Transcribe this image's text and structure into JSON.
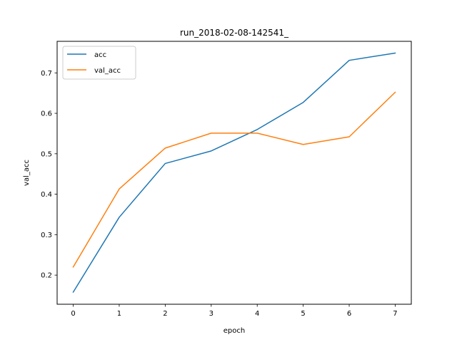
{
  "chart_data": {
    "type": "line",
    "title": "run_2018-02-08-142541_",
    "xlabel": "epoch",
    "ylabel": "val_acc",
    "x": [
      0,
      1,
      2,
      3,
      4,
      5,
      6,
      7
    ],
    "xlim": [
      -0.35,
      7.35
    ],
    "ylim": [
      0.128,
      0.778
    ],
    "xticks": [
      0,
      1,
      2,
      3,
      4,
      5,
      6,
      7
    ],
    "yticks": [
      0.2,
      0.3,
      0.4,
      0.5,
      0.6,
      0.7
    ],
    "xtick_labels": [
      "0",
      "1",
      "2",
      "3",
      "4",
      "5",
      "6",
      "7"
    ],
    "ytick_labels": [
      "0.2",
      "0.3",
      "0.4",
      "0.5",
      "0.6",
      "0.7"
    ],
    "grid": false,
    "legend_position": "upper-left",
    "series": [
      {
        "name": "acc",
        "color": "#1f77b4",
        "values": [
          0.158,
          0.343,
          0.476,
          0.507,
          0.56,
          0.627,
          0.731,
          0.749
        ]
      },
      {
        "name": "val_acc",
        "color": "#ff7f0e",
        "values": [
          0.22,
          0.413,
          0.514,
          0.551,
          0.551,
          0.523,
          0.542,
          0.652
        ]
      }
    ]
  }
}
